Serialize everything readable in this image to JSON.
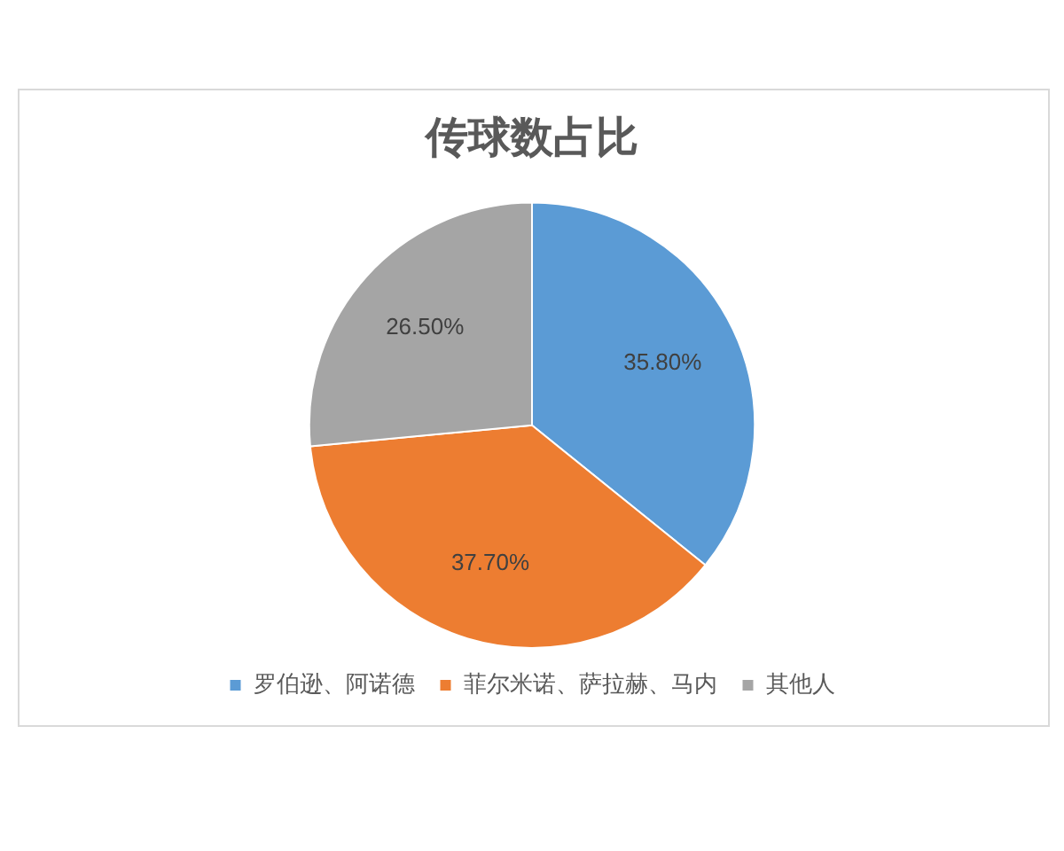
{
  "chart_data": {
    "type": "pie",
    "title": "传球数占比",
    "categories": [
      "罗伯逊、阿诺德",
      "菲尔米诺、萨拉赫、马内",
      "其他人"
    ],
    "values": [
      35.8,
      37.7,
      26.5
    ],
    "colors": [
      "#5b9bd5",
      "#ed7d31",
      "#a5a5a5"
    ],
    "value_labels": [
      "35.80%",
      "37.70%",
      "26.50%"
    ],
    "legend": "bottom"
  }
}
